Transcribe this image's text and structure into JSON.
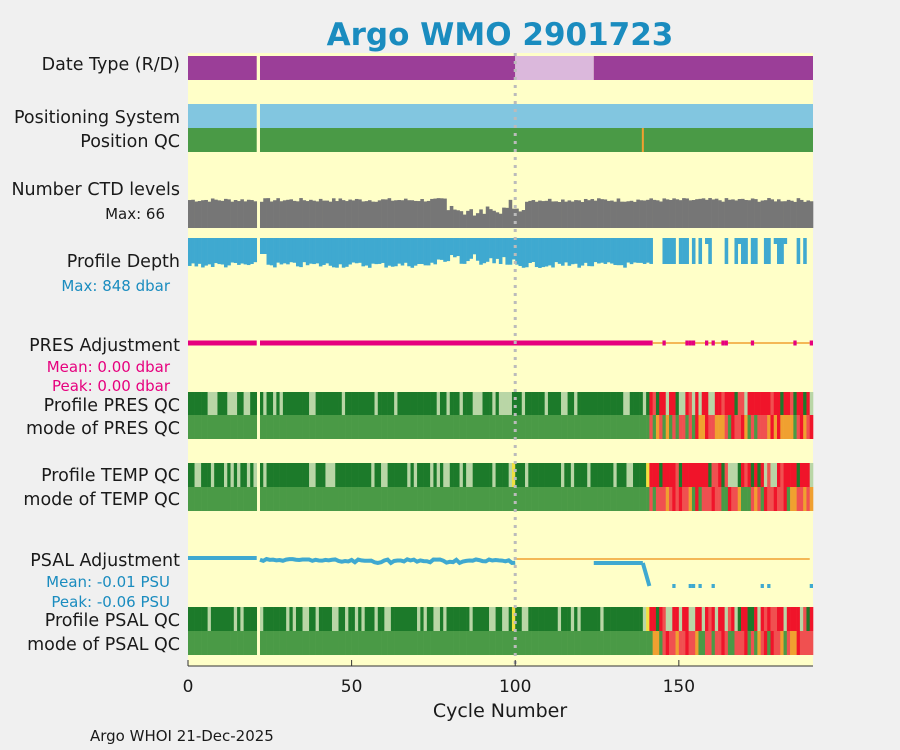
{
  "chart_data": {
    "type": "status-timeline",
    "title": "Argo WMO 2901723",
    "xlabel": "Cycle Number",
    "xlim": [
      0,
      191
    ],
    "xticks": [
      0,
      50,
      100,
      150
    ],
    "footer": "Argo WHOI 21-Dec-2025",
    "max_cycle": 191,
    "cycle_gap": [
      21,
      22
    ],
    "marker_cycle": 100,
    "colors": {
      "background": "#ffffc8",
      "title": "#1a8cbf",
      "purple": "#9b3e98",
      "light_purple": "#dbb8dc",
      "sky_blue": "#82c6e0",
      "teal_blue": "#3fa9d0",
      "mid_green": "#4a9a46",
      "dark_green": "#1c7a2a",
      "pale_green": "#b9d6a6",
      "grey": "#767676",
      "magenta": "#e6007e",
      "orange": "#f0a030",
      "red": "#f0142a",
      "pink_red": "#f05050",
      "yellow": "#f0e040",
      "marker": "#bbbbbb"
    },
    "labels": {
      "date_type": "Date Type (R/D)",
      "positioning_system": "Positioning System",
      "position_qc": "Position QC",
      "ctd_levels": "Number CTD levels",
      "ctd_max": "Max: 66",
      "profile_depth": "Profile Depth",
      "depth_max": "Max:  848 dbar",
      "pres_adjustment": "PRES Adjustment",
      "pres_mean": "Mean: 0.00 dbar",
      "pres_peak": "Peak: 0.00 dbar",
      "profile_pres_qc": "Profile PRES QC",
      "mode_pres_qc": "mode of PRES QC",
      "profile_temp_qc": "Profile TEMP QC",
      "mode_temp_qc": "mode of TEMP QC",
      "psal_adjustment": "PSAL Adjustment",
      "psal_mean": "Mean: -0.01 PSU",
      "psal_peak": "Peak: -0.06 PSU",
      "profile_psal_qc": "Profile PSAL QC",
      "mode_psal_qc": "mode of PSAL QC"
    },
    "date_type": [
      {
        "start": 0,
        "end": 100,
        "value": "R"
      },
      {
        "start": 100,
        "end": 124,
        "value": "D"
      },
      {
        "start": 124,
        "end": 191,
        "value": "R"
      }
    ],
    "position_qc_flags": [
      {
        "cycle": 139,
        "flag": 3
      }
    ],
    "ctd_levels_max": 66,
    "profile_depth_max_dbar": 848,
    "pres_adjustment_stats": {
      "mean_dbar": 0.0,
      "peak_dbar": 0.0
    },
    "psal_adjustment_stats": {
      "mean_psu": -0.01,
      "peak_psu": -0.06
    }
  }
}
